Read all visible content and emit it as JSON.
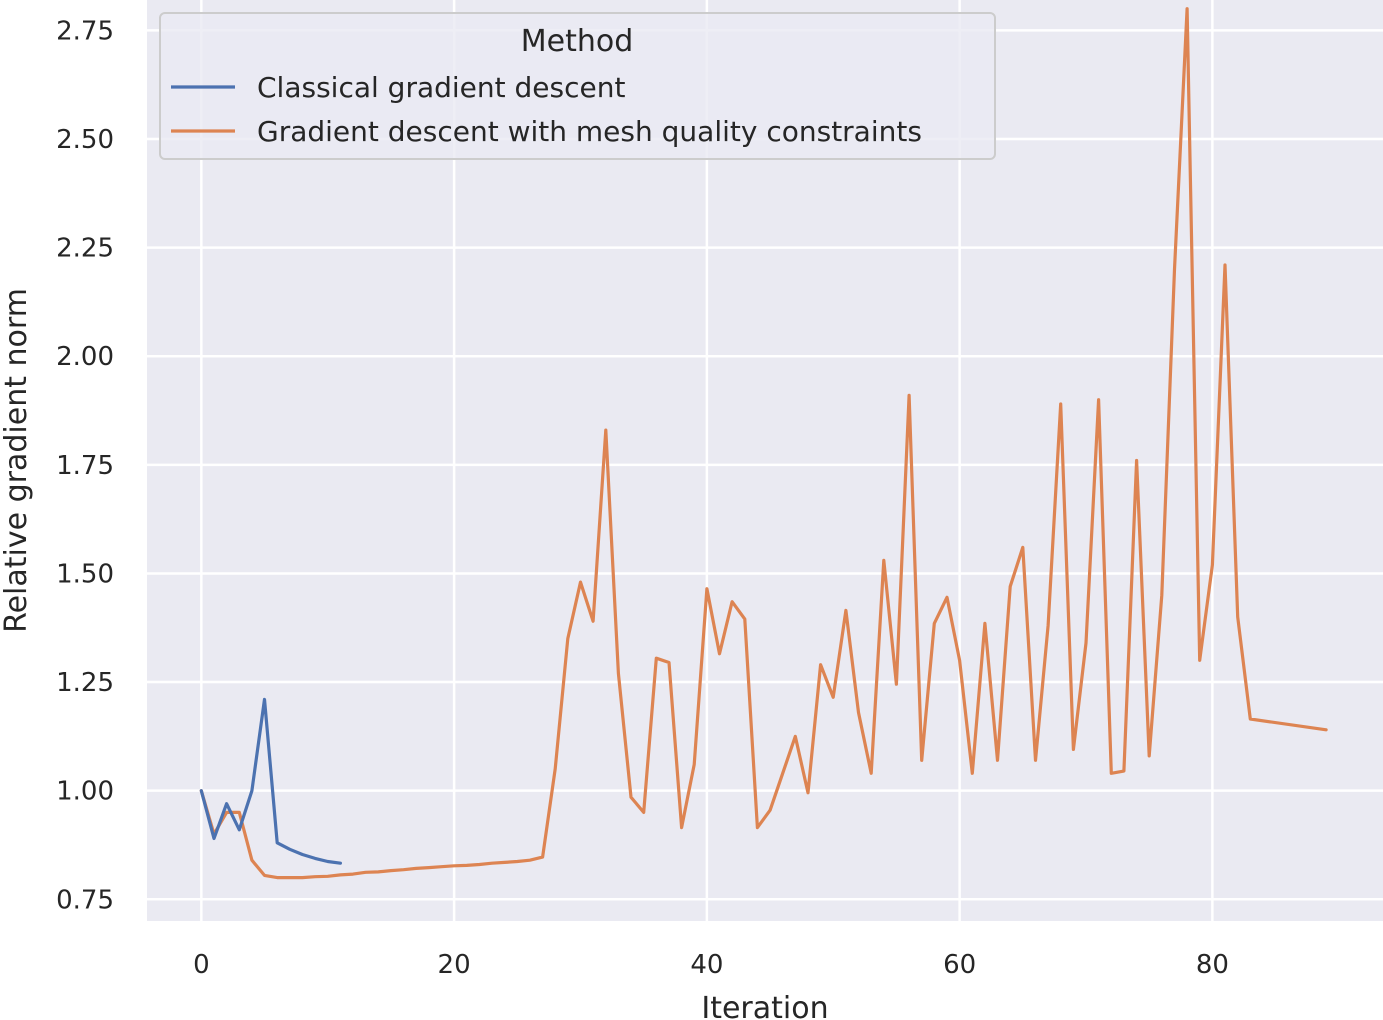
{
  "chart_data": {
    "type": "line",
    "xlabel": "Iteration",
    "ylabel": "Relative gradient norm",
    "xlim": [
      -4.3,
      93.5
    ],
    "ylim": [
      0.7,
      2.82
    ],
    "x_ticks": [
      0,
      20,
      40,
      60,
      80
    ],
    "y_ticks": [
      0.75,
      1.0,
      1.25,
      1.5,
      1.75,
      2.0,
      2.25,
      2.5,
      2.75
    ],
    "x_tick_labels": [
      "0",
      "20",
      "40",
      "60",
      "80"
    ],
    "y_tick_labels": [
      "0.75",
      "1.00",
      "1.25",
      "1.50",
      "1.75",
      "2.00",
      "2.25",
      "2.50",
      "2.75"
    ],
    "grid": true,
    "background": "#eaeaf2",
    "legend": {
      "title": "Method",
      "placement": "top-left"
    },
    "series": [
      {
        "name": "Classical gradient descent",
        "color": "#4c72b0",
        "x": [
          0,
          1,
          2,
          3,
          4,
          5,
          6,
          7,
          8,
          9,
          10,
          11
        ],
        "y": [
          1.0,
          0.89,
          0.97,
          0.91,
          1.0,
          1.21,
          0.88,
          0.865,
          0.853,
          0.844,
          0.837,
          0.833
        ]
      },
      {
        "name": "Gradient descent with mesh quality constraints",
        "color": "#dd8452",
        "x": [
          0,
          1,
          2,
          3,
          4,
          5,
          6,
          7,
          8,
          9,
          10,
          11,
          12,
          13,
          14,
          15,
          16,
          17,
          18,
          19,
          20,
          21,
          22,
          23,
          24,
          25,
          26,
          27,
          28,
          29,
          30,
          31,
          32,
          33,
          34,
          35,
          36,
          37,
          38,
          39,
          40,
          41,
          42,
          43,
          44,
          45,
          46,
          47,
          48,
          49,
          50,
          51,
          52,
          53,
          54,
          55,
          56,
          57,
          58,
          59,
          60,
          61,
          62,
          63,
          64,
          65,
          66,
          67,
          68,
          69,
          70,
          71,
          72,
          73,
          74,
          75,
          76,
          77,
          78,
          79,
          80,
          81,
          82,
          83,
          89
        ],
        "y": [
          1.0,
          0.9,
          0.95,
          0.95,
          0.84,
          0.805,
          0.8,
          0.8,
          0.8,
          0.802,
          0.803,
          0.806,
          0.808,
          0.812,
          0.813,
          0.816,
          0.818,
          0.821,
          0.823,
          0.825,
          0.827,
          0.828,
          0.83,
          0.833,
          0.835,
          0.837,
          0.84,
          0.847,
          1.05,
          1.35,
          1.48,
          1.39,
          1.83,
          1.27,
          0.985,
          0.95,
          1.305,
          1.295,
          0.915,
          1.06,
          1.465,
          1.315,
          1.435,
          1.395,
          0.915,
          0.955,
          1.04,
          1.125,
          0.995,
          1.29,
          1.215,
          1.415,
          1.18,
          1.04,
          1.53,
          1.245,
          1.91,
          1.07,
          1.385,
          1.445,
          1.3,
          1.04,
          1.385,
          1.07,
          1.47,
          1.56,
          1.07,
          1.38,
          1.89,
          1.095,
          1.34,
          1.9,
          1.04,
          1.045,
          1.76,
          1.08,
          1.45,
          2.2,
          2.8,
          1.3,
          1.52,
          2.21,
          1.4,
          1.165,
          1.14
        ]
      }
    ]
  }
}
